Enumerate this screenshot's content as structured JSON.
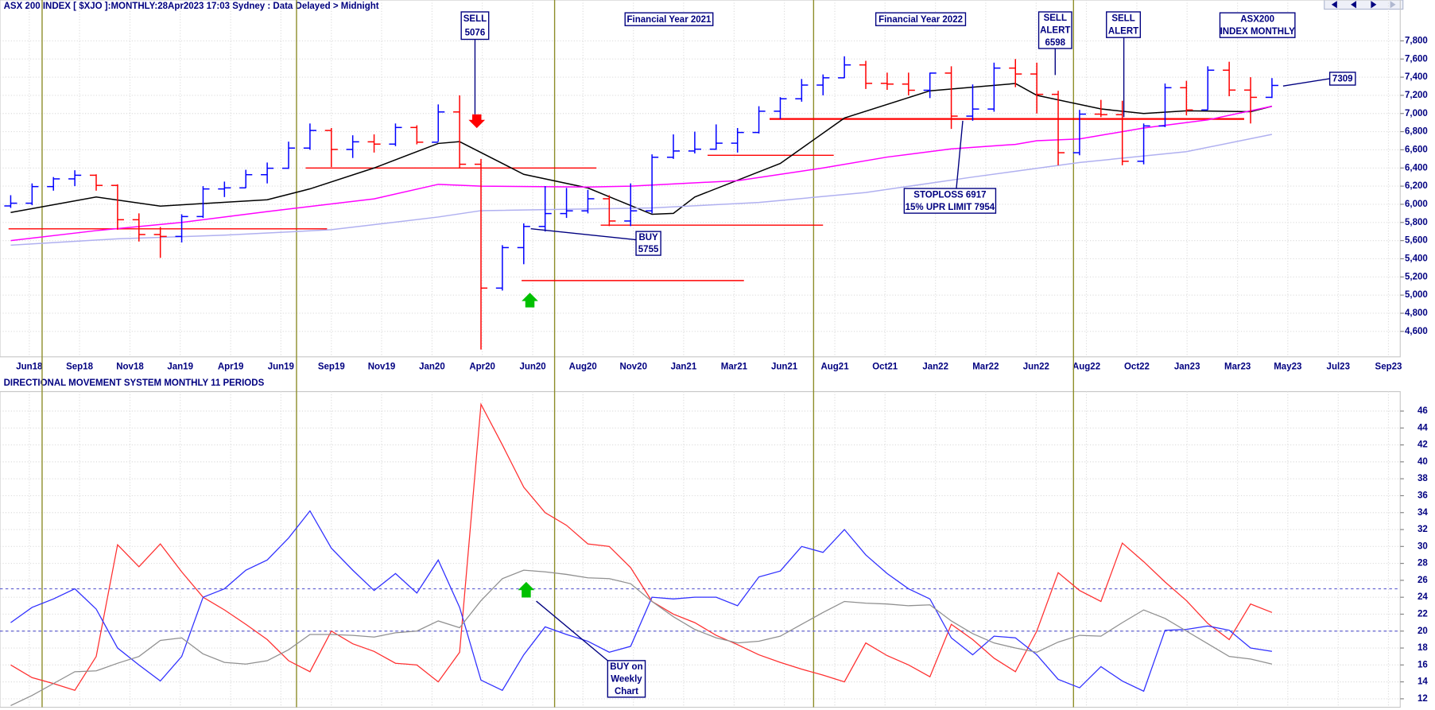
{
  "chart_data": [
    {
      "type": "ohlc",
      "title": "ASX 200 INDEX [ $XJO ]:MONTHLY:28Apr2023 17:03 Sydney : Data Delayed > Midnight",
      "x": [
        0,
        1,
        2,
        3,
        4,
        5,
        6,
        7,
        8,
        9,
        10,
        11,
        12,
        13,
        14,
        15,
        16,
        17,
        18,
        19,
        20,
        21,
        22,
        23,
        24,
        25,
        26,
        27,
        28,
        29,
        30,
        31,
        32,
        33,
        34,
        35,
        36,
        37,
        38,
        39,
        40,
        41,
        42,
        43,
        44,
        45,
        46,
        47,
        48,
        49,
        50,
        51,
        52,
        53,
        54,
        55,
        56,
        57,
        58,
        59
      ],
      "open": [
        5982,
        6012,
        6195,
        6280,
        6320,
        6208,
        5830,
        5667,
        5646,
        5865,
        6169,
        6181,
        6326,
        6397,
        6619,
        6813,
        6604,
        6688,
        6663,
        6846,
        6684,
        7017,
        6441,
        5077,
        5523,
        5756,
        5898,
        5928,
        6061,
        5816,
        5928,
        6518,
        6587,
        6607,
        6673,
        6791,
        7025,
        7162,
        7313,
        7393,
        7535,
        7332,
        7324,
        7256,
        7445,
        6971,
        7049,
        7500,
        7435,
        7211,
        6568,
        6993,
        6987,
        6474,
        6863,
        7284,
        7039,
        7477,
        7258,
        7178
      ],
      "high": [
        6100,
        6230,
        6300,
        6375,
        6330,
        6220,
        5900,
        5750,
        5890,
        6200,
        6250,
        6380,
        6460,
        6690,
        6890,
        6840,
        6760,
        6770,
        6890,
        6870,
        7100,
        7200,
        6500,
        5550,
        5790,
        6200,
        6180,
        6160,
        6100,
        6230,
        6550,
        6770,
        6800,
        6880,
        6840,
        7080,
        7180,
        7380,
        7430,
        7630,
        7580,
        7450,
        7450,
        7450,
        7520,
        7320,
        7560,
        7600,
        7560,
        7250,
        7040,
        7150,
        7140,
        6890,
        7330,
        7360,
        7520,
        7570,
        7400,
        7390
      ],
      "low": [
        5960,
        5990,
        6150,
        6200,
        6150,
        5720,
        5590,
        5410,
        5580,
        5850,
        6080,
        6180,
        6230,
        6390,
        6600,
        6410,
        6510,
        6570,
        6640,
        6660,
        6690,
        6400,
        4400,
        5050,
        5340,
        5700,
        5850,
        5900,
        5760,
        5760,
        5900,
        6500,
        6560,
        6600,
        6570,
        6780,
        6940,
        7130,
        7200,
        7390,
        7270,
        7260,
        7200,
        7170,
        6830,
        6920,
        7020,
        7290,
        7000,
        6430,
        6540,
        6960,
        6430,
        6440,
        6850,
        6980,
        7040,
        7190,
        6890,
        7170
      ],
      "close": [
        6012,
        6195,
        6280,
        6320,
        6208,
        5830,
        5667,
        5646,
        5865,
        6169,
        6181,
        6326,
        6397,
        6619,
        6813,
        6604,
        6688,
        6663,
        6846,
        6684,
        7017,
        6441,
        5077,
        5523,
        5756,
        5898,
        5928,
        6061,
        5816,
        5928,
        6518,
        6587,
        6607,
        6673,
        6791,
        7025,
        7162,
        7313,
        7393,
        7535,
        7332,
        7324,
        7256,
        7445,
        6971,
        7049,
        7500,
        7435,
        7211,
        6568,
        6993,
        6987,
        6474,
        6863,
        7284,
        7039,
        7477,
        7258,
        7178,
        7309
      ],
      "up_color": "#0000ff",
      "down_color": "#ff0000",
      "lines": [
        {
          "color": "#000000",
          "x": [
            0,
            4,
            7,
            12,
            14,
            17,
            20,
            21,
            24,
            27,
            30,
            31,
            32,
            36,
            39,
            43,
            47,
            48,
            51,
            53,
            55,
            58,
            59
          ],
          "values": [
            5910,
            6080,
            5980,
            6050,
            6170,
            6400,
            6670,
            6690,
            6330,
            6180,
            5890,
            5900,
            6080,
            6450,
            6950,
            7250,
            7330,
            7200,
            7050,
            7000,
            7030,
            7020,
            7080
          ]
        },
        {
          "color": "#ff00ff",
          "x": [
            0,
            4,
            8,
            12,
            17,
            20,
            22,
            27,
            29,
            34,
            38,
            41,
            44,
            47,
            48,
            50,
            53,
            56,
            59
          ],
          "values": [
            5600,
            5710,
            5800,
            5920,
            6060,
            6220,
            6200,
            6190,
            6200,
            6260,
            6400,
            6520,
            6610,
            6660,
            6700,
            6720,
            6840,
            6930,
            7080
          ]
        },
        {
          "color": "#b0b0f0",
          "x": [
            0,
            5,
            10,
            15,
            20,
            22,
            30,
            35,
            40,
            45,
            50,
            55,
            59
          ],
          "values": [
            5550,
            5620,
            5660,
            5720,
            5860,
            5930,
            5960,
            6020,
            6130,
            6300,
            6460,
            6580,
            6770
          ]
        }
      ],
      "levels": {
        "color": "#ff0000",
        "values": [
          5730,
          6400,
          5160,
          5770,
          6540,
          6940
        ],
        "from": [
          -0.1,
          13.8,
          23.9,
          27.6,
          32.6,
          35.5
        ],
        "to": [
          14.8,
          27.4,
          34.3,
          38.0,
          38.5,
          57.7
        ]
      },
      "xlim": [
        -0.5,
        65
      ],
      "ylim": [
        4320,
        8250
      ],
      "xticks": [
        {
          "value": 0.87,
          "label": "Jun18"
        },
        {
          "value": 3.22,
          "label": "Sep18"
        },
        {
          "value": 5.58,
          "label": "Nov18"
        },
        {
          "value": 7.93,
          "label": "Jan19"
        },
        {
          "value": 10.29,
          "label": "Apr19"
        },
        {
          "value": 12.64,
          "label": "Jun19"
        },
        {
          "value": 15.0,
          "label": "Sep19"
        },
        {
          "value": 17.35,
          "label": "Nov19"
        },
        {
          "value": 19.71,
          "label": "Jan20"
        },
        {
          "value": 22.06,
          "label": "Apr20"
        },
        {
          "value": 24.42,
          "label": "Jun20"
        },
        {
          "value": 26.77,
          "label": "Aug20"
        },
        {
          "value": 29.13,
          "label": "Nov20"
        },
        {
          "value": 31.48,
          "label": "Jan21"
        },
        {
          "value": 33.84,
          "label": "Mar21"
        },
        {
          "value": 36.19,
          "label": "Jun21"
        },
        {
          "value": 38.55,
          "label": "Aug21"
        },
        {
          "value": 40.9,
          "label": "Oct21"
        },
        {
          "value": 43.26,
          "label": "Jan22"
        },
        {
          "value": 45.61,
          "label": "Mar22"
        },
        {
          "value": 47.97,
          "label": "Jun22"
        },
        {
          "value": 50.32,
          "label": "Aug22"
        },
        {
          "value": 52.68,
          "label": "Oct22"
        },
        {
          "value": 55.03,
          "label": "Jan23"
        },
        {
          "value": 57.39,
          "label": "Mar23"
        },
        {
          "value": 59.74,
          "label": "May23"
        },
        {
          "value": 62.1,
          "label": "Jul23"
        },
        {
          "value": 64.45,
          "label": "Sep23"
        }
      ],
      "yticks": [
        {
          "value": 4600,
          "label": "4,600"
        },
        {
          "value": 4800,
          "label": "4,800"
        },
        {
          "value": 5000,
          "label": "5,000"
        },
        {
          "value": 5200,
          "label": "5,200"
        },
        {
          "value": 5400,
          "label": "5,400"
        },
        {
          "value": 5600,
          "label": "5,600"
        },
        {
          "value": 5800,
          "label": "5,800"
        },
        {
          "value": 6000,
          "label": "6,000"
        },
        {
          "value": 6200,
          "label": "6,200"
        },
        {
          "value": 6400,
          "label": "6,400"
        },
        {
          "value": 6600,
          "label": "6,600"
        },
        {
          "value": 6800,
          "label": "6,800"
        },
        {
          "value": 7000,
          "label": "7,000"
        },
        {
          "value": 7200,
          "label": "7,200"
        },
        {
          "value": 7400,
          "label": "7,400"
        },
        {
          "value": 7600,
          "label": "7,600"
        },
        {
          "value": 7800,
          "label": "7,800"
        }
      ],
      "grid": true,
      "annotations": [
        {
          "lines": [
            "SELL",
            "5076"
          ]
        },
        {
          "lines": [
            "Financial Year 2021"
          ]
        },
        {
          "lines": [
            "Financial Year 2022"
          ]
        },
        {
          "lines": [
            "SELL",
            "ALERT",
            "6598"
          ]
        },
        {
          "lines": [
            "SELL",
            "ALERT"
          ]
        },
        {
          "lines": [
            "ASX200",
            "INDEX MONTHLY"
          ]
        },
        {
          "lines": [
            "STOPLOSS 6917",
            "15% UPR LIMIT 7954"
          ]
        },
        {
          "lines": [
            "BUY",
            "5755"
          ]
        },
        {
          "lines": [
            "7309"
          ]
        }
      ]
    },
    {
      "type": "line",
      "title": "DIRECTIONAL MOVEMENT SYSTEM MONTHLY 11 PERIODS",
      "x": [
        0,
        1,
        2,
        3,
        4,
        5,
        6,
        7,
        8,
        9,
        10,
        11,
        12,
        13,
        14,
        15,
        16,
        17,
        18,
        19,
        20,
        21,
        22,
        23,
        24,
        25,
        26,
        27,
        28,
        29,
        30,
        31,
        32,
        33,
        34,
        35,
        36,
        37,
        38,
        39,
        40,
        41,
        42,
        43,
        44,
        45,
        46,
        47,
        48,
        49,
        50,
        51,
        52,
        53,
        54,
        55,
        56,
        57,
        58,
        59
      ],
      "series": [
        {
          "color": "#ff3030",
          "values": [
            16,
            14.5,
            13.8,
            13,
            17,
            30.2,
            27.6,
            30.3,
            27,
            24,
            22.5,
            20.8,
            19,
            16.5,
            15.2,
            20,
            18.5,
            17.6,
            16.2,
            16,
            14,
            17.5,
            46.8,
            42,
            37,
            34,
            32.5,
            30.3,
            30,
            27.5,
            23.5,
            22,
            21,
            19.5,
            18.4,
            17.2,
            16.3,
            15.5,
            14.8,
            14,
            18.6,
            17.1,
            16,
            14.6,
            20.8,
            19,
            16.8,
            15.2,
            20,
            26.9,
            24.8,
            23.5,
            30.4,
            28.2,
            25.8,
            23.6,
            20.9,
            19,
            23.2,
            22.2
          ]
        },
        {
          "color": "#3030ff",
          "values": [
            21,
            22.8,
            23.8,
            25,
            22.6,
            18,
            16,
            14.1,
            17,
            24,
            25,
            27.2,
            28.4,
            31,
            34.2,
            29.8,
            27.2,
            24.8,
            26.8,
            24.5,
            28.4,
            22.8,
            14.2,
            13,
            17.2,
            20.5,
            19.6,
            18.8,
            17.5,
            18.2,
            24,
            23.8,
            24,
            24,
            23,
            26.4,
            27.1,
            30,
            29.3,
            32,
            29,
            26.8,
            25,
            23.8,
            19.2,
            17.2,
            19.4,
            19.2,
            17.2,
            14.3,
            13.3,
            15.8,
            14.1,
            12.9,
            20.1,
            20.2,
            20.6,
            20.1,
            18,
            17.6
          ]
        },
        {
          "color": "#909090",
          "values": [
            11.2,
            12.4,
            13.8,
            15.2,
            15.3,
            16.2,
            17,
            18.9,
            19.2,
            17.3,
            16.3,
            16.1,
            16.5,
            17.8,
            19.6,
            19.6,
            19.5,
            19.3,
            19.8,
            20,
            21.2,
            20.4,
            23.6,
            26.2,
            27.2,
            27,
            26.7,
            26.3,
            26.2,
            25.6,
            23.5,
            21.7,
            20.2,
            19.2,
            18.6,
            18.8,
            19.4,
            20.8,
            22.2,
            23.5,
            23.3,
            23.2,
            23,
            23.1,
            21.2,
            19.7,
            18.6,
            18,
            17.5,
            18.7,
            19.5,
            19.4,
            21,
            22.5,
            21.5,
            20,
            18.5,
            17,
            16.7,
            16.1
          ]
        }
      ],
      "reference_lines": {
        "color": "#6060d0",
        "values": [
          25,
          20
        ]
      },
      "xlim": [
        -0.5,
        65
      ],
      "ylim": [
        11,
        48.3
      ],
      "yticks": [
        12,
        14,
        16,
        18,
        20,
        22,
        24,
        26,
        28,
        30,
        32,
        34,
        36,
        38,
        40,
        42,
        44,
        46
      ],
      "grid": true,
      "annotations": [
        {
          "lines": [
            "BUY on",
            "Weekly",
            "Chart"
          ]
        }
      ]
    }
  ]
}
